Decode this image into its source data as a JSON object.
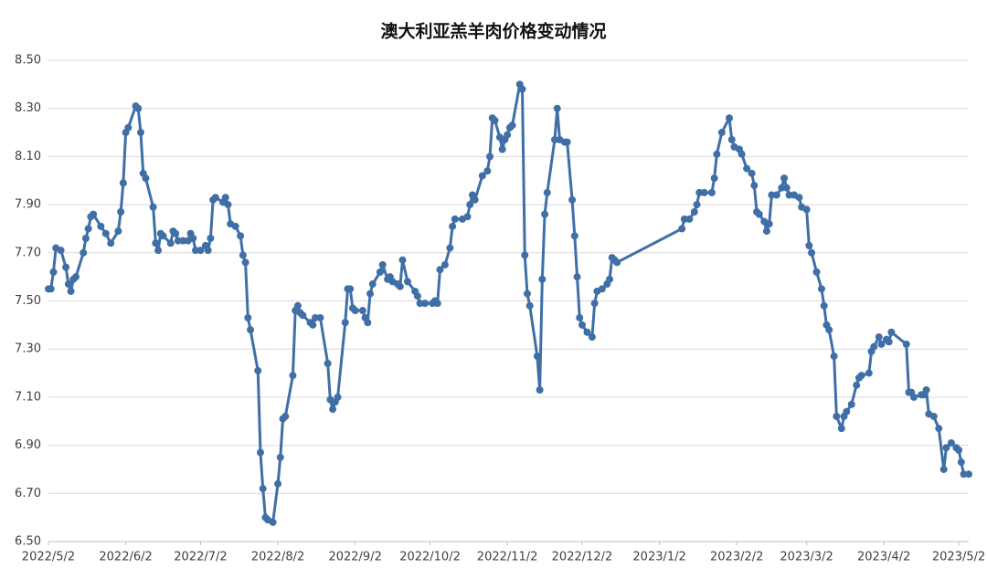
{
  "chart_data": {
    "type": "line",
    "title": "澳大利亚羔羊肉价格变动情况",
    "color": "#3f6fa6",
    "grid": true,
    "markers": true,
    "x": [
      "2022/5/2",
      "2022/5/3",
      "2022/5/4",
      "2022/5/5",
      "2022/5/7",
      "2022/5/9",
      "2022/5/10",
      "2022/5/11",
      "2022/5/12",
      "2022/5/13",
      "2022/5/16",
      "2022/5/17",
      "2022/5/18",
      "2022/5/19",
      "2022/5/20",
      "2022/5/23",
      "2022/5/25",
      "2022/5/27",
      "2022/5/30",
      "2022/5/31",
      "2022/6/1",
      "2022/6/2",
      "2022/6/3",
      "2022/6/6",
      "2022/6/7",
      "2022/6/8",
      "2022/6/9",
      "2022/6/10",
      "2022/6/13",
      "2022/6/14",
      "2022/6/15",
      "2022/6/16",
      "2022/6/17",
      "2022/6/20",
      "2022/6/21",
      "2022/6/22",
      "2022/6/23",
      "2022/6/25",
      "2022/6/27",
      "2022/6/28",
      "2022/6/29",
      "2022/6/30",
      "2022/7/2",
      "2022/7/4",
      "2022/7/5",
      "2022/7/6",
      "2022/7/7",
      "2022/7/8",
      "2022/7/11",
      "2022/7/12",
      "2022/7/13",
      "2022/7/14",
      "2022/7/16",
      "2022/7/18",
      "2022/7/19",
      "2022/7/20",
      "2022/7/21",
      "2022/7/22",
      "2022/7/25",
      "2022/7/26",
      "2022/7/27",
      "2022/7/28",
      "2022/7/29",
      "2022/7/31",
      "2022/8/2",
      "2022/8/3",
      "2022/8/4",
      "2022/8/5",
      "2022/8/8",
      "2022/8/9",
      "2022/8/10",
      "2022/8/11",
      "2022/8/12",
      "2022/8/15",
      "2022/8/16",
      "2022/8/17",
      "2022/8/19",
      "2022/8/22",
      "2022/8/23",
      "2022/8/24",
      "2022/8/25",
      "2022/8/26",
      "2022/8/29",
      "2022/8/30",
      "2022/8/31",
      "2022/9/1",
      "2022/9/2",
      "2022/9/5",
      "2022/9/6",
      "2022/9/7",
      "2022/9/8",
      "2022/9/9",
      "2022/9/12",
      "2022/9/13",
      "2022/9/15",
      "2022/9/16",
      "2022/9/17",
      "2022/9/19",
      "2022/9/20",
      "2022/9/21",
      "2022/9/23",
      "2022/9/26",
      "2022/9/27",
      "2022/9/28",
      "2022/9/30",
      "2022/10/3",
      "2022/10/4",
      "2022/10/5",
      "2022/10/6",
      "2022/10/8",
      "2022/10/10",
      "2022/10/11",
      "2022/10/12",
      "2022/10/15",
      "2022/10/17",
      "2022/10/18",
      "2022/10/19",
      "2022/10/20",
      "2022/10/23",
      "2022/10/25",
      "2022/10/26",
      "2022/10/27",
      "2022/10/28",
      "2022/10/30",
      "2022/10/31",
      "2022/11/1",
      "2022/11/2",
      "2022/11/3",
      "2022/11/4",
      "2022/11/7",
      "2022/11/8",
      "2022/11/9",
      "2022/11/10",
      "2022/11/11",
      "2022/11/14",
      "2022/11/15",
      "2022/11/16",
      "2022/11/17",
      "2022/11/18",
      "2022/11/21",
      "2022/11/22",
      "2022/11/23",
      "2022/11/25",
      "2022/11/26",
      "2022/11/28",
      "2022/11/29",
      "2022/11/30",
      "2022/12/1",
      "2022/12/2",
      "2022/12/4",
      "2022/12/6",
      "2022/12/7",
      "2022/12/8",
      "2022/12/10",
      "2022/12/12",
      "2022/12/13",
      "2022/12/14",
      "2022/12/15",
      "2022/12/16",
      "2023/1/11",
      "2023/1/12",
      "2023/1/14",
      "2023/1/16",
      "2023/1/17",
      "2023/1/18",
      "2023/1/20",
      "2023/1/23",
      "2023/1/24",
      "2023/1/25",
      "2023/1/27",
      "2023/1/30",
      "2023/1/31",
      "2023/2/1",
      "2023/2/3",
      "2023/2/4",
      "2023/2/6",
      "2023/2/8",
      "2023/2/9",
      "2023/2/10",
      "2023/2/11",
      "2023/2/13",
      "2023/2/14",
      "2023/2/15",
      "2023/2/16",
      "2023/2/18",
      "2023/2/20",
      "2023/2/21",
      "2023/2/22",
      "2023/2/23",
      "2023/2/25",
      "2023/2/27",
      "2023/2/28",
      "2023/3/2",
      "2023/3/3",
      "2023/3/4",
      "2023/3/6",
      "2023/3/8",
      "2023/3/9",
      "2023/3/10",
      "2023/3/11",
      "2023/3/13",
      "2023/3/14",
      "2023/3/16",
      "2023/3/17",
      "2023/3/18",
      "2023/3/20",
      "2023/3/22",
      "2023/3/23",
      "2023/3/24",
      "2023/3/27",
      "2023/3/28",
      "2023/3/29",
      "2023/3/31",
      "2023/4/1",
      "2023/4/3",
      "2023/4/4",
      "2023/4/5",
      "2023/4/11",
      "2023/4/12",
      "2023/4/13",
      "2023/4/14",
      "2023/4/17",
      "2023/4/18",
      "2023/4/19",
      "2023/4/20",
      "2023/4/22",
      "2023/4/24",
      "2023/4/26",
      "2023/4/27",
      "2023/4/29",
      "2023/5/1",
      "2023/5/2",
      "2023/5/3",
      "2023/5/4",
      "2023/5/6"
    ],
    "values": [
      7.55,
      7.55,
      7.62,
      7.72,
      7.71,
      7.64,
      7.57,
      7.54,
      7.59,
      7.6,
      7.7,
      7.76,
      7.8,
      7.85,
      7.86,
      7.81,
      7.78,
      7.74,
      7.79,
      7.87,
      7.99,
      8.2,
      8.22,
      8.31,
      8.3,
      8.2,
      8.03,
      8.01,
      7.89,
      7.74,
      7.71,
      7.78,
      7.77,
      7.74,
      7.79,
      7.78,
      7.75,
      7.75,
      7.75,
      7.78,
      7.76,
      7.71,
      7.71,
      7.73,
      7.71,
      7.76,
      7.92,
      7.93,
      7.91,
      7.93,
      7.9,
      7.82,
      7.81,
      7.77,
      7.69,
      7.66,
      7.43,
      7.38,
      7.21,
      6.87,
      6.72,
      6.6,
      6.59,
      6.58,
      6.74,
      6.85,
      7.01,
      7.02,
      7.19,
      7.46,
      7.48,
      7.45,
      7.44,
      7.41,
      7.4,
      7.43,
      7.43,
      7.24,
      7.09,
      7.05,
      7.08,
      7.1,
      7.41,
      7.55,
      7.55,
      7.47,
      7.46,
      7.46,
      7.43,
      7.41,
      7.53,
      7.57,
      7.62,
      7.65,
      7.59,
      7.6,
      7.58,
      7.57,
      7.56,
      7.67,
      7.58,
      7.54,
      7.52,
      7.49,
      7.49,
      7.49,
      7.5,
      7.49,
      7.63,
      7.65,
      7.72,
      7.81,
      7.84,
      7.84,
      7.85,
      7.9,
      7.94,
      7.92,
      8.02,
      8.04,
      8.1,
      8.26,
      8.25,
      8.18,
      8.13,
      8.17,
      8.19,
      8.22,
      8.23,
      8.4,
      8.38,
      7.69,
      7.53,
      7.48,
      7.27,
      7.13,
      7.59,
      7.86,
      7.95,
      8.17,
      8.3,
      8.17,
      8.16,
      8.16,
      7.92,
      7.77,
      7.6,
      7.43,
      7.4,
      7.37,
      7.35,
      7.49,
      7.54,
      7.55,
      7.57,
      7.59,
      7.68,
      7.67,
      7.66,
      7.8,
      7.84,
      7.84,
      7.87,
      7.9,
      7.95,
      7.95,
      7.95,
      8.01,
      8.11,
      8.2,
      8.26,
      8.17,
      8.14,
      8.13,
      8.11,
      8.05,
      8.03,
      7.98,
      7.87,
      7.86,
      7.83,
      7.79,
      7.82,
      7.94,
      7.94,
      7.97,
      8.01,
      7.97,
      7.94,
      7.94,
      7.93,
      7.89,
      7.88,
      7.73,
      7.7,
      7.62,
      7.55,
      7.48,
      7.4,
      7.38,
      7.27,
      7.02,
      6.97,
      7.02,
      7.04,
      7.07,
      7.15,
      7.18,
      7.19,
      7.2,
      7.29,
      7.31,
      7.35,
      7.32,
      7.34,
      7.33,
      7.37,
      7.32,
      7.12,
      7.12,
      7.1,
      7.11,
      7.11,
      7.13,
      7.03,
      7.02,
      6.97,
      6.8,
      6.89,
      6.91,
      6.89,
      6.88,
      6.83,
      6.78,
      6.78
    ],
    "xlim": [
      "2022/5/2",
      "2023/5/6"
    ],
    "xticks": [
      "2022/5/2",
      "2022/6/2",
      "2022/7/2",
      "2022/8/2",
      "2022/9/2",
      "2022/10/2",
      "2022/11/2",
      "2022/12/2",
      "2023/1/2",
      "2023/2/2",
      "2023/3/2",
      "2023/4/2",
      "2023/5/2"
    ],
    "ylim": [
      6.5,
      8.5
    ],
    "yticks": [
      {
        "value": 6.5,
        "label": "6.50"
      },
      {
        "value": 6.7,
        "label": "6.70"
      },
      {
        "value": 6.9,
        "label": "6.90"
      },
      {
        "value": 7.1,
        "label": "7.10"
      },
      {
        "value": 7.3,
        "label": "7.30"
      },
      {
        "value": 7.5,
        "label": "7.50"
      },
      {
        "value": 7.7,
        "label": "7.70"
      },
      {
        "value": 7.9,
        "label": "7.90"
      },
      {
        "value": 8.1,
        "label": "8.10"
      },
      {
        "value": 8.3,
        "label": "8.30"
      },
      {
        "value": 8.5,
        "label": "8.50"
      }
    ]
  }
}
